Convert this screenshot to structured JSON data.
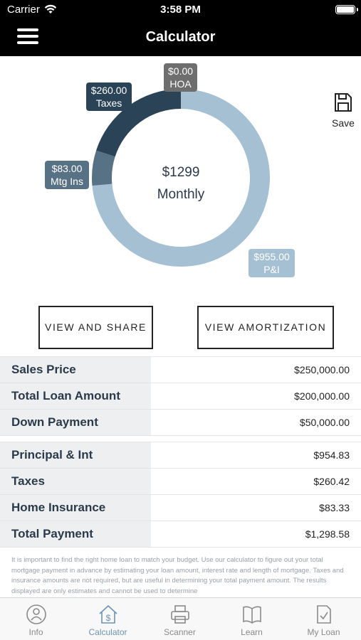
{
  "status": {
    "carrier": "Carrier",
    "time": "3:58 PM"
  },
  "header": {
    "title": "Calculator"
  },
  "save_label": "Save",
  "chart_data": {
    "type": "pie",
    "categories": [
      "P&I",
      "Mtg Ins",
      "Taxes",
      "HOA"
    ],
    "values": [
      955.0,
      83.0,
      260.0,
      0.0
    ],
    "value_labels": [
      "$955.00",
      "$83.00",
      "$260.00",
      "$0.00"
    ],
    "colors": [
      "#a5c0d3",
      "#587285",
      "#2a4357",
      "#6e6e6e"
    ],
    "center_amount": "$1299",
    "center_period": "Monthly"
  },
  "buttons": {
    "view_share": "VIEW AND SHARE",
    "view_amortization": "VIEW AMORTIZATION"
  },
  "loan_rows": [
    {
      "label": "Sales Price",
      "value": "$250,000.00"
    },
    {
      "label": "Total Loan Amount",
      "value": "$200,000.00"
    },
    {
      "label": "Down Payment",
      "value": "$50,000.00"
    }
  ],
  "payment_rows": [
    {
      "label": "Principal & Int",
      "value": "$954.83"
    },
    {
      "label": "Taxes",
      "value": "$260.42"
    },
    {
      "label": "Home Insurance",
      "value": "$83.33"
    },
    {
      "label": "Total Payment",
      "value": "$1,298.58"
    }
  ],
  "disclaimer": "It is important to find the right home loan to match your budget. Use our calculator to figure out your total mortgage payment in advance by estimating your loan amount, interest rate and length of mortgage. Taxes and insurance amounts are not required, but are useful in determining your total payment amount. The results displayed are only estimates and cannot be used to determine",
  "tabs": [
    {
      "label": "Info",
      "icon": "info-person-icon"
    },
    {
      "label": "Calculator",
      "icon": "calculator-house-icon",
      "active": true
    },
    {
      "label": "Scanner",
      "icon": "printer-icon"
    },
    {
      "label": "Learn",
      "icon": "book-icon"
    },
    {
      "label": "My Loan",
      "icon": "document-check-icon"
    }
  ]
}
